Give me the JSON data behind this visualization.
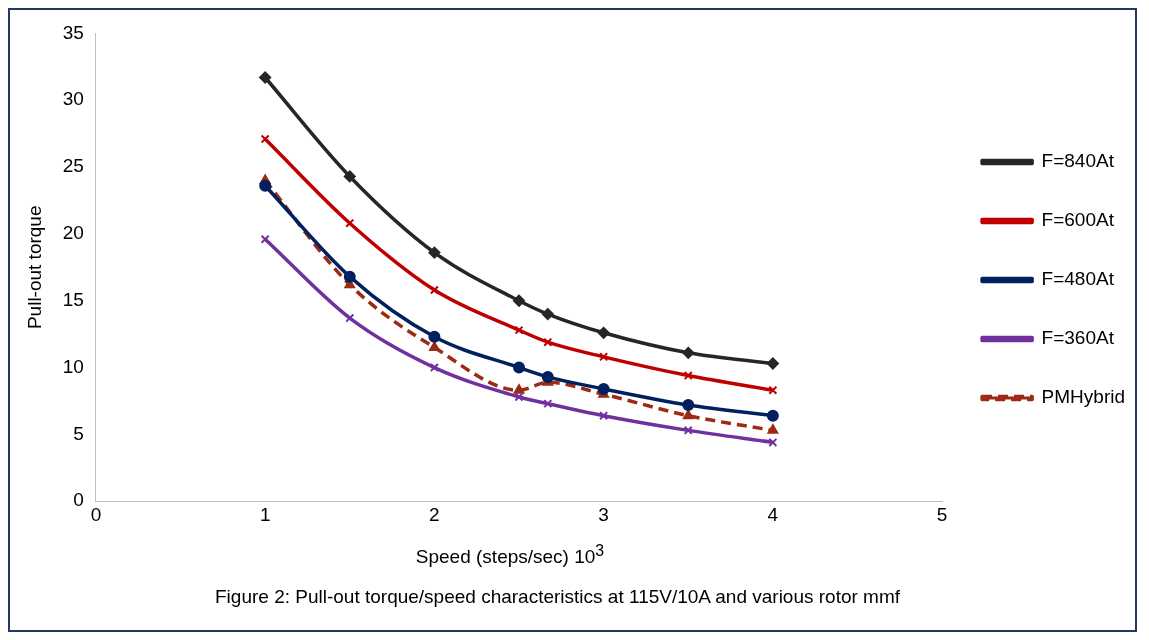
{
  "chart_data": {
    "type": "line",
    "xlabel": "Speed (steps/sec) 10$^{3}$",
    "ylabel": "Pull-out torque",
    "annotations": [
      "Figure 2: Pull-out torque/speed characteristics  at 115V/10A and various rotor mmf"
    ],
    "x": [
      1,
      1.5,
      2,
      2.5,
      2.67,
      3,
      3.5,
      4
    ],
    "series": [
      {
        "name": "F=840At",
        "color": "#262626",
        "marker": "diamond",
        "line_style": "solid",
        "values": [
          31.7,
          24.3,
          18.6,
          15.0,
          14.0,
          12.6,
          11.1,
          10.3
        ]
      },
      {
        "name": "F=600At",
        "color": "#c00000",
        "marker": "cross",
        "line_style": "solid",
        "values": [
          27.1,
          20.8,
          15.8,
          12.8,
          11.9,
          10.8,
          9.4,
          8.3
        ]
      },
      {
        "name": "F=480At",
        "color": "#002060",
        "marker": "circle",
        "line_style": "solid",
        "values": [
          23.6,
          16.8,
          12.3,
          10.0,
          9.3,
          8.4,
          7.2,
          6.4
        ]
      },
      {
        "name": "F=360At",
        "color": "#7030a0",
        "marker": "cross",
        "line_style": "solid",
        "values": [
          19.6,
          13.7,
          10.0,
          7.8,
          7.3,
          6.4,
          5.3,
          4.4
        ]
      },
      {
        "name": "PMHybrid",
        "color": "#9c2a14",
        "marker": "triangle",
        "line_style": "dashed",
        "values": [
          24.0,
          16.2,
          11.5,
          8.3,
          8.9,
          8.0,
          6.4,
          5.3
        ]
      }
    ],
    "xlim": [
      0,
      5
    ],
    "xticks": [
      0,
      1,
      2,
      3,
      4,
      5
    ],
    "ylim": [
      0,
      35
    ],
    "yticks": [
      0,
      5,
      10,
      15,
      20,
      25,
      30,
      35
    ],
    "grid": false,
    "legend": "right"
  }
}
